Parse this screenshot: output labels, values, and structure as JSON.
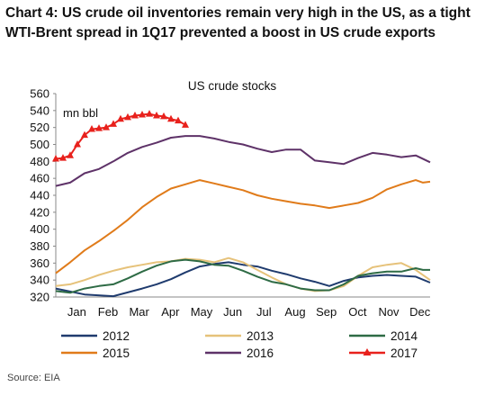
{
  "title_line1": "Chart 4: US crude oil inventories remain very high in the US, as a tight",
  "title_line2": "WTI-Brent spread in 1Q17 prevented a boost in US crude exports",
  "source": "Source: EIA",
  "chart_data": {
    "type": "line",
    "title": "US crude stocks",
    "ylabel": "mn bbl",
    "xlabel": "",
    "ylim": [
      320,
      560
    ],
    "yticks": [
      320,
      340,
      360,
      380,
      400,
      420,
      440,
      460,
      480,
      500,
      520,
      540,
      560
    ],
    "x_unit": "week of year",
    "xlim": [
      1,
      53
    ],
    "month_labels": [
      "Jan",
      "Feb",
      "Mar",
      "Apr",
      "May",
      "Jun",
      "Jul",
      "Aug",
      "Sep",
      "Oct",
      "Nov",
      "Dec"
    ],
    "grid": false,
    "legend_position": "bottom",
    "series": [
      {
        "name": "2012",
        "color": "#1f3b6e",
        "marker": "none",
        "x": [
          1,
          5,
          9,
          13,
          15,
          17,
          19,
          21,
          23,
          25,
          27,
          29,
          31,
          33,
          35,
          37,
          39,
          41,
          43,
          45,
          47,
          49,
          51,
          53
        ],
        "y": [
          330,
          323,
          321,
          330,
          335,
          341,
          349,
          356,
          359,
          361,
          358,
          356,
          351,
          347,
          342,
          338,
          333,
          339,
          343,
          345,
          346,
          345,
          344,
          337
        ]
      },
      {
        "name": "2013",
        "color": "#e6c27a",
        "marker": "none",
        "x": [
          1,
          3,
          5,
          7,
          9,
          11,
          13,
          15,
          17,
          19,
          21,
          23,
          25,
          27,
          29,
          31,
          33,
          35,
          37,
          39,
          41,
          43,
          45,
          47,
          49,
          51,
          53
        ],
        "y": [
          333,
          335,
          340,
          346,
          351,
          355,
          358,
          361,
          362,
          365,
          364,
          361,
          366,
          361,
          352,
          343,
          335,
          330,
          327,
          328,
          333,
          345,
          355,
          358,
          360,
          352,
          340
        ]
      },
      {
        "name": "2014",
        "color": "#2e6b45",
        "marker": "none",
        "x": [
          1,
          3,
          5,
          7,
          9,
          11,
          13,
          15,
          17,
          19,
          21,
          23,
          25,
          27,
          29,
          31,
          33,
          35,
          37,
          39,
          41,
          43,
          45,
          47,
          49,
          51,
          52,
          53
        ],
        "y": [
          327,
          325,
          330,
          333,
          335,
          342,
          350,
          357,
          362,
          364,
          362,
          358,
          357,
          351,
          344,
          338,
          335,
          330,
          328,
          328,
          335,
          345,
          348,
          350,
          350,
          354,
          352,
          352
        ]
      },
      {
        "name": "2015",
        "color": "#e07b1a",
        "marker": "none",
        "x": [
          1,
          3,
          5,
          7,
          9,
          11,
          13,
          15,
          17,
          19,
          21,
          23,
          25,
          27,
          29,
          31,
          33,
          35,
          37,
          39,
          41,
          43,
          45,
          47,
          49,
          51,
          52,
          53
        ],
        "y": [
          348,
          361,
          375,
          386,
          398,
          411,
          426,
          438,
          448,
          453,
          458,
          454,
          450,
          446,
          440,
          436,
          433,
          430,
          428,
          425,
          428,
          431,
          437,
          447,
          453,
          458,
          455,
          456
        ]
      },
      {
        "name": "2016",
        "color": "#5e3268",
        "marker": "none",
        "x": [
          1,
          3,
          5,
          7,
          9,
          11,
          13,
          15,
          17,
          19,
          21,
          23,
          25,
          27,
          29,
          31,
          33,
          35,
          37,
          39,
          41,
          43,
          45,
          47,
          49,
          51,
          53
        ],
        "y": [
          451,
          455,
          466,
          471,
          480,
          490,
          497,
          502,
          508,
          510,
          510,
          507,
          503,
          500,
          495,
          491,
          494,
          494,
          481,
          479,
          477,
          484,
          490,
          488,
          485,
          487,
          479
        ]
      },
      {
        "name": "2017",
        "color": "#e8211c",
        "marker": "triangle",
        "x": [
          1,
          2,
          3,
          4,
          5,
          6,
          7,
          8,
          9,
          10,
          11,
          12,
          13,
          14,
          15,
          16,
          17,
          18,
          19
        ],
        "y": [
          483,
          484,
          487,
          500,
          511,
          518,
          519,
          520,
          524,
          530,
          532,
          534,
          535,
          536,
          534,
          533,
          530,
          528,
          523
        ]
      }
    ]
  }
}
